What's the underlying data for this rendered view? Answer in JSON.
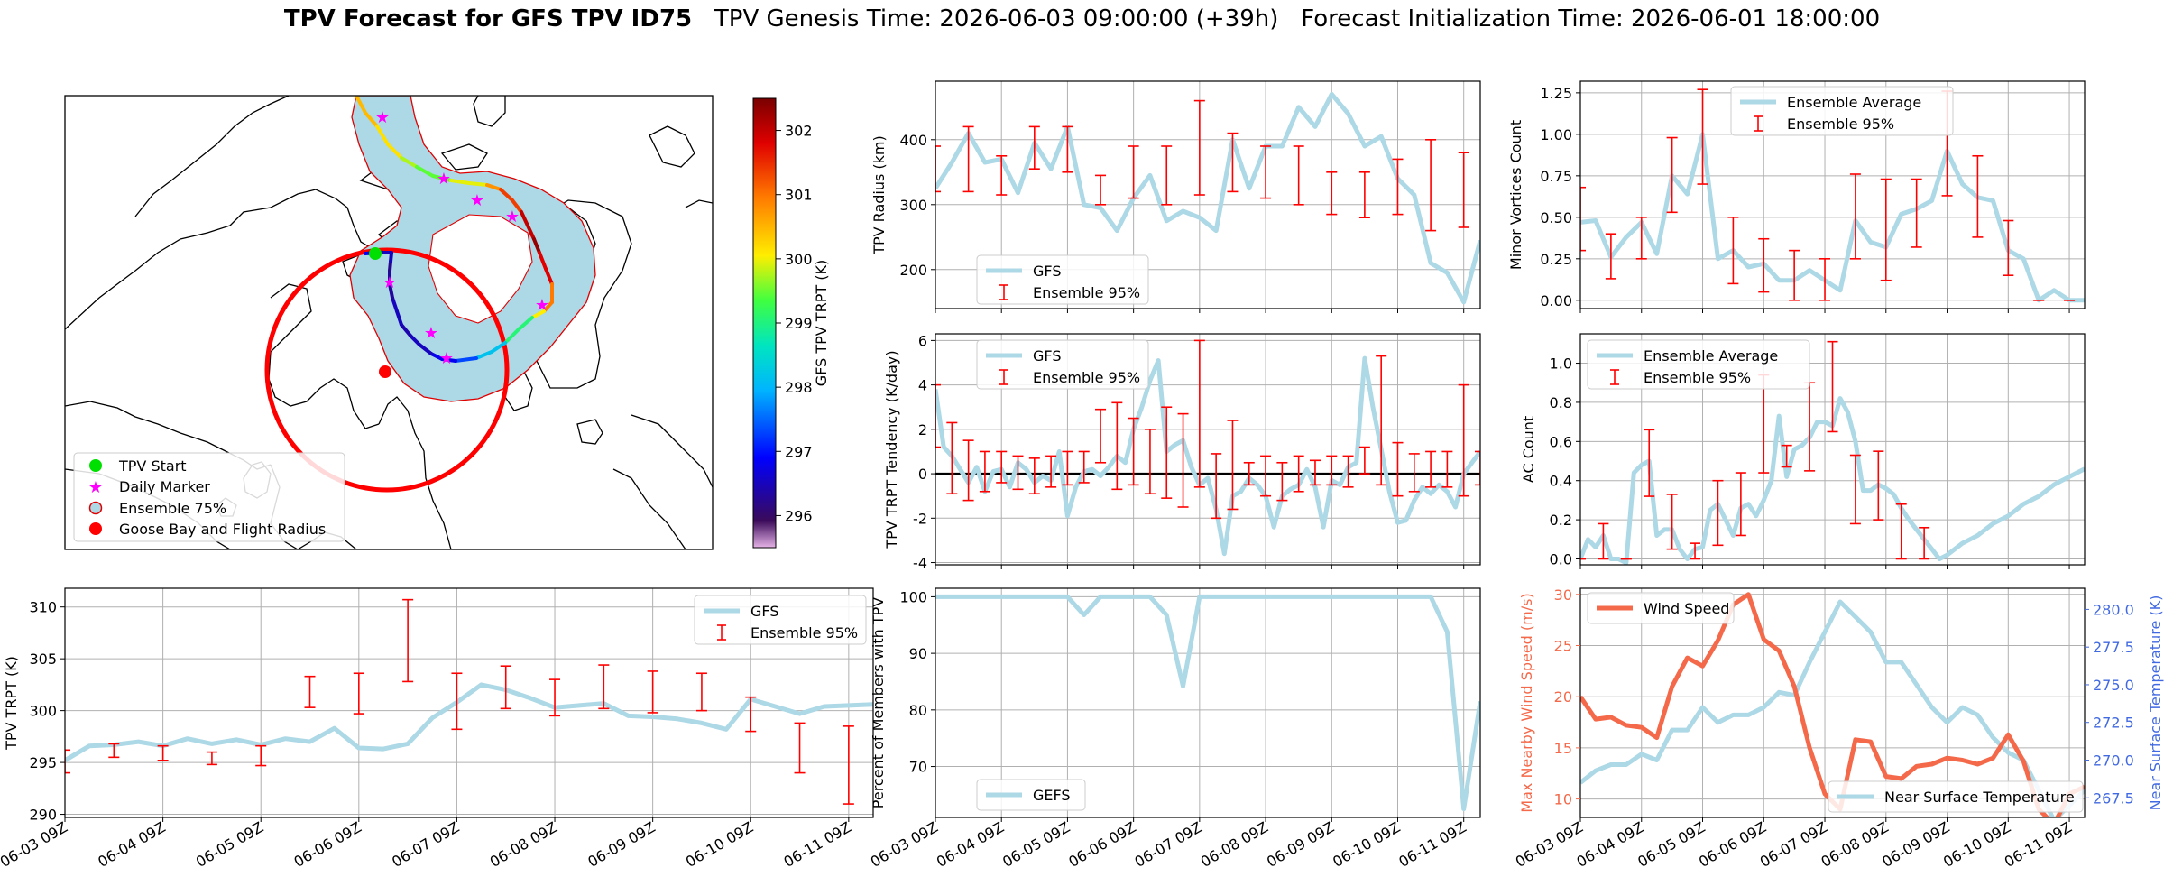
{
  "title": {
    "bold": "TPV Forecast for GFS TPV ID75",
    "genesis": "TPV Genesis Time: 2026-06-03 09:00:00 (+39h)",
    "init": "Forecast Initialization Time: 2026-06-01 18:00:00"
  },
  "colors": {
    "gfs": "#add8e6",
    "ensemble": "#ff0000",
    "wind": "#f4694a",
    "temp_axis": "#4169e1",
    "grid": "#b0b0b0"
  },
  "time_ticks": [
    "06-03 09Z",
    "06-04 09Z",
    "06-05 09Z",
    "06-06 09Z",
    "06-07 09Z",
    "06-08 09Z",
    "06-09 09Z",
    "06-10 09Z",
    "06-11 09Z"
  ],
  "chart_data": [
    {
      "id": "map",
      "type": "map",
      "colorbar": {
        "label": "GFS TPV TRPT (K)",
        "range": [
          295.5,
          302.5
        ],
        "ticks": [
          296,
          297,
          298,
          299,
          300,
          301,
          302
        ]
      },
      "legend": {
        "placement": "lower-left",
        "entries": [
          "TPV Start",
          "Daily Marker",
          "Ensemble 75%",
          "Goose Bay and Flight Radius"
        ]
      },
      "track": {
        "description_units": "TRPT K along track",
        "trpt_values": [
          300.5,
          300.2,
          299.8,
          299.5,
          300.0,
          300.8,
          301.4,
          302.0,
          302.3,
          301.8,
          301.0,
          300.1,
          299.1,
          298.2,
          297.4,
          296.9,
          296.6,
          296.5,
          296.6,
          296.4,
          296.3,
          296.6,
          296.9
        ]
      }
    },
    {
      "id": "radius",
      "type": "line",
      "ylabel": "TPV Radius (km)",
      "ylim": [
        140,
        490
      ],
      "yticks": [
        200,
        300,
        400
      ],
      "legend": {
        "placement": "lower-left",
        "entries": [
          "GFS",
          "Ensemble 95%"
        ]
      },
      "x": [
        0,
        1,
        2,
        3,
        4,
        5,
        6,
        7,
        8,
        9,
        10,
        11,
        12,
        13,
        14,
        15,
        16,
        17,
        18,
        19,
        20,
        21,
        22,
        23,
        24,
        25,
        26,
        27,
        28,
        29,
        30,
        31,
        32,
        33
      ],
      "gfs": [
        325,
        365,
        410,
        365,
        370,
        318,
        395,
        355,
        420,
        300,
        295,
        260,
        310,
        345,
        275,
        290,
        280,
        260,
        400,
        325,
        390,
        390,
        450,
        420,
        470,
        440,
        390,
        405,
        340,
        315,
        210,
        195,
        150,
        245
      ],
      "ens_x": [
        0,
        2,
        4,
        6,
        8,
        10,
        12,
        14,
        16,
        18,
        20,
        22,
        24,
        26,
        28,
        30,
        32
      ],
      "ens_lo": [
        320,
        320,
        315,
        355,
        350,
        300,
        310,
        300,
        315,
        320,
        310,
        300,
        285,
        280,
        285,
        260,
        265
      ],
      "ens_hi": [
        390,
        420,
        375,
        420,
        420,
        345,
        390,
        390,
        460,
        410,
        390,
        390,
        350,
        350,
        370,
        400,
        380
      ]
    },
    {
      "id": "minor",
      "type": "line",
      "ylabel": "Minor Vortices Count",
      "ylim": [
        -0.05,
        1.32
      ],
      "yticks": [
        0.0,
        0.25,
        0.5,
        0.75,
        1.0,
        1.25
      ],
      "ytick_labels": [
        "0.00",
        "0.25",
        "0.50",
        "0.75",
        "1.00",
        "1.25"
      ],
      "legend": {
        "placement": "top-center",
        "entries": [
          "Ensemble Average",
          "Ensemble 95%"
        ]
      },
      "x": [
        0,
        1,
        2,
        3,
        4,
        5,
        6,
        7,
        8,
        9,
        10,
        11,
        12,
        13,
        14,
        15,
        16,
        17,
        18,
        19,
        20,
        21,
        22,
        23,
        24,
        25,
        26,
        27,
        28,
        29,
        30,
        31,
        32,
        33
      ],
      "avg": [
        0.47,
        0.48,
        0.26,
        0.38,
        0.47,
        0.28,
        0.75,
        0.64,
        1.0,
        0.25,
        0.3,
        0.2,
        0.22,
        0.12,
        0.12,
        0.18,
        0.12,
        0.06,
        0.48,
        0.35,
        0.32,
        0.52,
        0.55,
        0.6,
        0.9,
        0.7,
        0.62,
        0.6,
        0.3,
        0.25,
        0.0,
        0.06,
        0.0,
        0.0
      ],
      "ens_x": [
        0,
        2,
        4,
        6,
        8,
        10,
        12,
        14,
        16,
        18,
        20,
        22,
        24,
        26,
        28,
        30,
        32
      ],
      "ens_lo": [
        0.3,
        0.13,
        0.25,
        0.53,
        0.7,
        0.1,
        0.05,
        0.0,
        0.0,
        0.25,
        0.12,
        0.32,
        0.63,
        0.38,
        0.15,
        0.0,
        0.0
      ],
      "ens_hi": [
        0.68,
        0.4,
        0.5,
        0.98,
        1.27,
        0.5,
        0.37,
        0.3,
        0.25,
        0.76,
        0.73,
        0.73,
        1.26,
        0.87,
        0.48,
        0.0,
        0.0
      ]
    },
    {
      "id": "tendency",
      "type": "line",
      "ylabel": "TPV TRPT Tendency (K/day)",
      "ylim": [
        -4.1,
        6.3
      ],
      "yticks": [
        -4,
        -2,
        0,
        2,
        4,
        6
      ],
      "legend": {
        "placement": "top-left",
        "entries": [
          "GFS",
          "Ensemble 95%"
        ]
      },
      "x": [
        0,
        1,
        2,
        3,
        4,
        5,
        6,
        7,
        8,
        9,
        10,
        11,
        12,
        13,
        14,
        15,
        16,
        17,
        18,
        19,
        20,
        21,
        22,
        23,
        24,
        25,
        26,
        27,
        28,
        29,
        30,
        31,
        32,
        33,
        34,
        35,
        36,
        37,
        38,
        39,
        40,
        41,
        42,
        43,
        44,
        45,
        46,
        47,
        48,
        49,
        50,
        51,
        52,
        53,
        54,
        55,
        56,
        57,
        58,
        59,
        60,
        61,
        62,
        63,
        64,
        65,
        66
      ],
      "gfs": [
        3.8,
        1.2,
        0.8,
        0.2,
        -0.4,
        0.3,
        -0.8,
        0.1,
        0.2,
        -0.6,
        0.5,
        0.2,
        -0.4,
        -0.1,
        -0.3,
        1.0,
        -1.9,
        -0.6,
        0.1,
        0.2,
        -0.1,
        0.3,
        0.8,
        0.5,
        2.0,
        3.0,
        4.2,
        5.1,
        1.0,
        1.3,
        1.5,
        0.3,
        -0.5,
        -0.2,
        -1.6,
        -3.6,
        -1.0,
        -0.8,
        -0.2,
        -0.5,
        -1.0,
        -2.4,
        -1.0,
        -0.7,
        -0.5,
        0.2,
        -0.6,
        -2.4,
        -0.3,
        -0.5,
        0.3,
        0.5,
        5.2,
        3.0,
        1.1,
        -0.8,
        -2.2,
        -2.1,
        -1.2,
        -0.6,
        -0.9,
        -0.5,
        -0.8,
        -1.5,
        0.0,
        0.5,
        1.0
      ],
      "ens_x": [
        0,
        2,
        4,
        6,
        8,
        10,
        12,
        14,
        16,
        18,
        20,
        22,
        24,
        26,
        28,
        30,
        32,
        34,
        36,
        38,
        40,
        42,
        44,
        46,
        48,
        50,
        52,
        54,
        56,
        58,
        60,
        62,
        64,
        66
      ],
      "ens_lo": [
        1.2,
        -0.9,
        -1.2,
        -0.8,
        -0.4,
        -0.7,
        -0.9,
        -0.6,
        -0.5,
        -0.4,
        0.5,
        -0.7,
        -0.5,
        -0.9,
        -1.1,
        -1.5,
        -0.6,
        -2.0,
        -1.6,
        -0.5,
        -1.0,
        -1.2,
        -0.8,
        -0.5,
        -0.5,
        -0.6,
        0.0,
        -0.5,
        -1.0,
        -0.8,
        -0.6,
        -0.6,
        -1.0,
        -0.5
      ],
      "ens_hi": [
        4.0,
        2.3,
        1.5,
        1.0,
        1.0,
        0.8,
        0.7,
        0.8,
        1.0,
        1.0,
        2.9,
        3.2,
        2.5,
        2.0,
        3.0,
        2.7,
        6.0,
        0.9,
        2.4,
        0.5,
        0.8,
        0.5,
        0.8,
        0.6,
        0.8,
        0.8,
        1.2,
        5.3,
        1.4,
        0.9,
        1.0,
        1.0,
        4.0,
        1.0
      ]
    },
    {
      "id": "ac",
      "type": "line",
      "ylabel": "AC Count",
      "ylim": [
        -0.03,
        1.15
      ],
      "yticks": [
        0.0,
        0.2,
        0.4,
        0.6,
        0.8,
        1.0
      ],
      "ytick_labels": [
        "0.0",
        "0.2",
        "0.4",
        "0.6",
        "0.8",
        "1.0"
      ],
      "legend": {
        "placement": "top-left",
        "entries": [
          "Ensemble Average",
          "Ensemble 95%"
        ]
      },
      "x": [
        0,
        1,
        2,
        3,
        4,
        5,
        6,
        7,
        8,
        9,
        10,
        11,
        12,
        13,
        14,
        15,
        16,
        17,
        18,
        19,
        20,
        21,
        22,
        23,
        24,
        25,
        26,
        27,
        28,
        29,
        30,
        31,
        32,
        33,
        34,
        35,
        36,
        37,
        38,
        39,
        40,
        41,
        42,
        43,
        44,
        45,
        46,
        47,
        48,
        49,
        50,
        51,
        52,
        53,
        54,
        55,
        56,
        57,
        58,
        59,
        60,
        61,
        62,
        63,
        64,
        65,
        66
      ],
      "avg": [
        0.0,
        0.1,
        0.06,
        0.12,
        0.0,
        0.0,
        -0.02,
        0.44,
        0.48,
        0.5,
        0.12,
        0.15,
        0.15,
        0.05,
        0.0,
        0.05,
        0.06,
        0.25,
        0.28,
        0.2,
        0.12,
        0.26,
        0.28,
        0.22,
        0.3,
        0.4,
        0.73,
        0.42,
        0.56,
        0.58,
        0.62,
        0.7,
        0.7,
        0.68,
        0.82,
        0.75,
        0.6,
        0.35,
        0.35,
        0.38,
        0.36,
        0.33,
        0.26,
        0.2,
        0.15,
        0.1,
        0.05,
        0.0,
        0.02,
        0.05,
        0.08,
        0.1,
        0.12,
        0.15,
        0.18,
        0.2,
        0.22,
        0.25,
        0.28,
        0.3,
        0.32,
        0.35,
        0.38,
        0.4,
        0.42,
        0.44,
        0.46
      ],
      "ens_x": [
        0,
        3,
        6,
        9,
        12,
        15,
        18,
        21,
        24,
        27,
        30,
        33,
        36,
        39,
        42,
        45
      ],
      "ens_lo": [
        0.0,
        0.0,
        0.0,
        0.32,
        0.05,
        0.0,
        0.07,
        0.12,
        0.44,
        0.47,
        0.45,
        0.65,
        0.18,
        0.2,
        0.0,
        0.0
      ],
      "ens_hi": [
        0.0,
        0.18,
        0.0,
        0.66,
        0.33,
        0.08,
        0.4,
        0.44,
        0.94,
        0.58,
        0.9,
        1.11,
        0.53,
        0.55,
        0.28,
        0.16
      ]
    },
    {
      "id": "trpt",
      "type": "line",
      "ylabel": "TPV TRPT (K)",
      "ylim": [
        289.7,
        311.8
      ],
      "yticks": [
        290,
        295,
        300,
        305,
        310
      ],
      "legend": {
        "placement": "top-right",
        "entries": [
          "GFS",
          "Ensemble 95%"
        ]
      },
      "x": [
        0,
        1,
        2,
        3,
        4,
        5,
        6,
        7,
        8,
        9,
        10,
        11,
        12,
        13,
        14,
        15,
        16,
        17,
        18,
        19,
        20,
        21,
        22,
        23,
        24,
        25,
        26,
        27,
        28,
        29,
        30,
        31,
        32,
        33
      ],
      "gfs": [
        295.2,
        296.6,
        296.7,
        297.0,
        296.6,
        297.3,
        296.8,
        297.2,
        296.7,
        297.3,
        297.0,
        298.3,
        296.4,
        296.3,
        296.8,
        299.3,
        300.8,
        302.5,
        302.0,
        301.2,
        300.3,
        300.5,
        300.7,
        299.5,
        299.4,
        299.2,
        298.8,
        298.2,
        301.1,
        300.4,
        299.7,
        300.4,
        300.5,
        300.6
      ],
      "ens_x": [
        0,
        2,
        4,
        6,
        8,
        10,
        12,
        14,
        16,
        18,
        20,
        22,
        24,
        26,
        28,
        30,
        32
      ],
      "ens_lo": [
        294.0,
        295.5,
        295.2,
        294.8,
        294.7,
        300.3,
        299.7,
        302.8,
        298.2,
        300.2,
        299.5,
        300.2,
        299.8,
        300.0,
        298.0,
        294.0,
        291.0
      ],
      "ens_hi": [
        296.2,
        296.8,
        296.6,
        296.0,
        296.6,
        303.3,
        303.6,
        310.7,
        303.6,
        304.3,
        303.0,
        304.4,
        303.8,
        303.6,
        301.3,
        298.8,
        298.5
      ]
    },
    {
      "id": "members",
      "type": "line",
      "ylabel": "Percent of Members with TPV",
      "ylim": [
        61,
        101.5
      ],
      "yticks": [
        70,
        80,
        90,
        100
      ],
      "legend": {
        "placement": "bottom-left",
        "entries": [
          "GEFS"
        ]
      },
      "x": [
        0,
        1,
        2,
        3,
        4,
        5,
        6,
        7,
        8,
        9,
        10,
        11,
        12,
        13,
        14,
        15,
        16,
        17,
        18,
        19,
        20,
        21,
        22,
        23,
        24,
        25,
        26,
        27,
        28,
        29,
        30,
        31,
        32,
        33
      ],
      "values": [
        100,
        100,
        100,
        100,
        100,
        100,
        100,
        100,
        100,
        96.8,
        100,
        100,
        100,
        100,
        96.8,
        84.2,
        100,
        100,
        100,
        100,
        100,
        100,
        100,
        100,
        100,
        100,
        100,
        100,
        100,
        100,
        100,
        93.8,
        62.5,
        81.5
      ]
    },
    {
      "id": "wind_temp",
      "type": "line",
      "ylabel_left": "Max Nearby Wind Speed (m/s)",
      "ylabel_right": "Near Surface Temperature (K)",
      "ylim_left": [
        8.2,
        30.6
      ],
      "ylim_right": [
        266.2,
        281.4
      ],
      "yticks_left": [
        10,
        15,
        20,
        25,
        30
      ],
      "yticks_right": [
        267.5,
        270.0,
        272.5,
        275.0,
        277.5,
        280.0
      ],
      "ytick_labels_right": [
        "267.5",
        "270.0",
        "272.5",
        "275.0",
        "277.5",
        "280.0"
      ],
      "legend_left": {
        "placement": "top-left",
        "entries": [
          "Wind Speed"
        ]
      },
      "legend_right": {
        "placement": "bottom-right",
        "entries": [
          "Near Surface Temperature"
        ]
      },
      "x": [
        0,
        1,
        2,
        3,
        4,
        5,
        6,
        7,
        8,
        9,
        10,
        11,
        12,
        13,
        14,
        15,
        16,
        17,
        18,
        19,
        20,
        21,
        22,
        23,
        24,
        25,
        26,
        27,
        28,
        29,
        30,
        31,
        32,
        33
      ],
      "wind": [
        20.0,
        17.8,
        18.0,
        17.2,
        17.0,
        16.0,
        21.0,
        23.8,
        23.0,
        25.5,
        29.0,
        30.0,
        25.6,
        24.5,
        21.0,
        15.0,
        10.5,
        9.0,
        15.8,
        15.6,
        12.2,
        12.0,
        13.2,
        13.4,
        14.0,
        13.8,
        13.4,
        14.0,
        16.3,
        13.7,
        9.0,
        7.5,
        10.5,
        11.2
      ],
      "temp": [
        268.5,
        269.3,
        269.7,
        269.7,
        270.4,
        270.0,
        272.0,
        272.0,
        273.5,
        272.5,
        273.0,
        273.0,
        273.5,
        274.5,
        274.3,
        276.5,
        278.5,
        280.5,
        279.5,
        278.5,
        276.5,
        276.5,
        275.0,
        273.5,
        272.5,
        273.5,
        273.0,
        271.5,
        270.5,
        270.0,
        268.0,
        266.0,
        267.0,
        268.0
      ]
    }
  ]
}
